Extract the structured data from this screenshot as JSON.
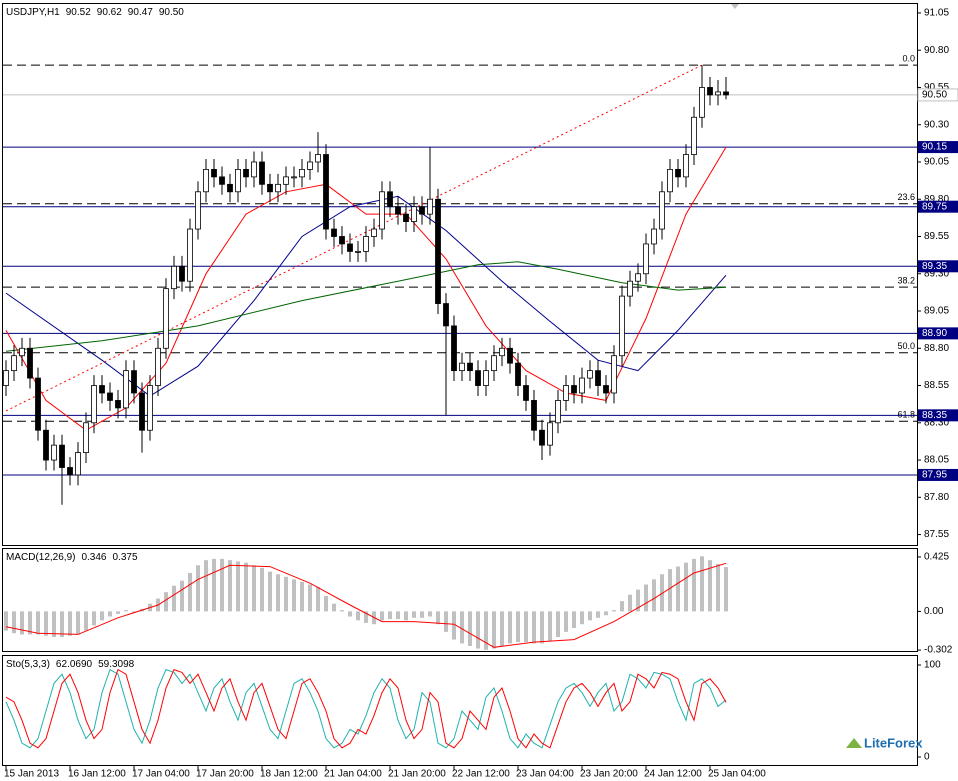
{
  "chart_data": [
    {
      "type": "candlestick",
      "title": "USDJPY,H1",
      "ohlc_header": [
        90.52,
        90.62,
        90.47,
        {
          "value": 90.5,
          "label": "90.50"
        }
      ],
      "categories": [
        "15 Jan 2013",
        null,
        null,
        null,
        null,
        null,
        null,
        null,
        "16 Jan 12:00",
        null,
        null,
        null,
        null,
        null,
        null,
        null,
        "17 Jan 04:00",
        null,
        null,
        null,
        null,
        null,
        null,
        null,
        "17 Jan 20:00",
        null,
        null,
        null,
        null,
        null,
        null,
        null,
        "18 Jan 12:00",
        null,
        null,
        null,
        null,
        null,
        null,
        null,
        "21 Jan 04:00",
        null,
        null,
        null,
        null,
        null,
        null,
        null,
        "21 Jan 20:00",
        null,
        null,
        null,
        null,
        null,
        null,
        null,
        "22 Jan 12:00",
        null,
        null,
        null,
        null,
        null,
        null,
        null,
        "23 Jan 04:00",
        null,
        null,
        null,
        null,
        null,
        null,
        null,
        "23 Jan 20:00",
        null,
        null,
        null,
        null,
        null,
        null,
        null,
        "24 Jan 12:00",
        null,
        null,
        null,
        null,
        null,
        null,
        null,
        "25 Jan 04:00",
        null,
        null
      ],
      "open": [
        88.55,
        88.65,
        88.75,
        88.8,
        88.6,
        88.25,
        88.05,
        88.15,
        88.0,
        87.95,
        88.1,
        88.3,
        88.55,
        88.5,
        88.45,
        88.4,
        88.65,
        88.5,
        88.25,
        88.55,
        88.8,
        89.2,
        89.35,
        89.25,
        89.6,
        89.85,
        90.0,
        89.95,
        89.9,
        89.85,
        90.0,
        89.95,
        90.05,
        89.9,
        89.85,
        89.9,
        89.95,
        89.95,
        90.0,
        90.05,
        90.1,
        89.6,
        89.55,
        89.5,
        89.45,
        89.45,
        89.55,
        89.6,
        89.85,
        89.75,
        89.7,
        89.65,
        89.75,
        89.7,
        89.8,
        89.1,
        88.95,
        88.65,
        88.7,
        88.65,
        88.55,
        88.65,
        88.75,
        88.8,
        88.7,
        88.55,
        88.45,
        88.25,
        88.15,
        88.3,
        88.45,
        88.55,
        88.5,
        88.6,
        88.65,
        88.55,
        88.5,
        88.75,
        89.15,
        89.25,
        89.3,
        89.5,
        89.6,
        89.85,
        90.0,
        89.95,
        90.1,
        90.35,
        90.55,
        90.5,
        90.52
      ],
      "high": [
        88.72,
        88.82,
        88.87,
        88.87,
        88.67,
        88.32,
        88.22,
        88.22,
        88.07,
        88.17,
        88.37,
        88.62,
        88.62,
        88.57,
        88.52,
        88.72,
        88.72,
        88.57,
        88.62,
        88.87,
        89.27,
        89.42,
        89.42,
        89.67,
        89.92,
        90.07,
        90.07,
        90.02,
        89.97,
        90.07,
        90.07,
        90.12,
        90.12,
        89.97,
        89.97,
        90.02,
        90.02,
        90.07,
        90.12,
        90.25,
        90.17,
        89.67,
        89.62,
        89.57,
        89.52,
        89.62,
        89.67,
        89.92,
        89.92,
        89.82,
        89.77,
        89.82,
        89.82,
        90.15,
        89.87,
        89.17,
        89.02,
        88.77,
        88.77,
        88.72,
        88.72,
        88.82,
        88.87,
        88.87,
        88.77,
        88.62,
        88.52,
        88.32,
        88.37,
        88.52,
        88.62,
        88.62,
        88.67,
        88.72,
        88.72,
        88.62,
        88.82,
        89.22,
        89.32,
        89.37,
        89.57,
        89.67,
        89.92,
        90.07,
        90.07,
        90.17,
        90.42,
        90.7,
        90.62,
        90.6,
        90.62
      ],
      "low": [
        88.48,
        88.58,
        88.68,
        88.53,
        88.18,
        87.98,
        87.98,
        87.75,
        87.88,
        87.88,
        88.03,
        88.23,
        88.43,
        88.38,
        88.33,
        88.33,
        88.43,
        88.1,
        88.18,
        88.48,
        88.73,
        89.13,
        89.18,
        89.18,
        89.53,
        89.78,
        89.88,
        89.83,
        89.78,
        89.78,
        89.88,
        89.88,
        89.83,
        89.78,
        89.78,
        89.83,
        89.88,
        89.88,
        89.93,
        89.98,
        89.53,
        89.48,
        89.43,
        89.38,
        89.38,
        89.38,
        89.48,
        89.53,
        89.68,
        89.63,
        89.58,
        89.58,
        89.63,
        89.63,
        89.03,
        88.35,
        88.58,
        88.58,
        88.58,
        88.48,
        88.48,
        88.58,
        88.68,
        88.63,
        88.48,
        88.38,
        88.18,
        88.05,
        88.08,
        88.23,
        88.38,
        88.43,
        88.43,
        88.53,
        88.48,
        88.43,
        88.43,
        88.68,
        89.08,
        89.18,
        89.23,
        89.43,
        89.53,
        89.78,
        89.88,
        89.88,
        90.03,
        90.28,
        90.43,
        90.43,
        90.47
      ],
      "close": [
        88.65,
        88.75,
        88.8,
        88.6,
        88.25,
        88.05,
        88.15,
        88.0,
        87.95,
        88.1,
        88.3,
        88.55,
        88.5,
        88.45,
        88.4,
        88.65,
        88.5,
        88.25,
        88.55,
        88.8,
        89.2,
        89.35,
        89.25,
        89.6,
        89.85,
        90.0,
        89.95,
        89.9,
        89.85,
        90.0,
        89.95,
        90.05,
        89.9,
        89.85,
        89.9,
        89.95,
        89.95,
        90.0,
        90.05,
        90.1,
        89.6,
        89.55,
        89.5,
        89.45,
        89.45,
        89.55,
        89.6,
        89.85,
        89.75,
        89.7,
        89.65,
        89.75,
        89.7,
        89.8,
        89.1,
        88.95,
        88.65,
        88.7,
        88.65,
        88.55,
        88.65,
        88.75,
        88.8,
        88.7,
        88.55,
        88.45,
        88.25,
        88.15,
        88.3,
        88.45,
        88.55,
        88.5,
        88.6,
        88.65,
        88.55,
        88.5,
        88.75,
        89.15,
        89.25,
        89.3,
        89.5,
        89.6,
        89.85,
        90.0,
        89.95,
        90.1,
        90.35,
        90.55,
        90.5,
        90.52,
        90.5
      ],
      "up_color": "#ffffff",
      "down_color": "#000000",
      "ylim": [
        87.48,
        91.11
      ],
      "yticks": [
        91.05,
        {
          "value": 90.8,
          "label": "90.80"
        },
        90.55,
        {
          "value": 90.3,
          "label": "90.30"
        },
        90.05,
        {
          "value": 89.8,
          "label": "89.80"
        },
        89.55,
        {
          "value": 89.3,
          "label": "89.30"
        },
        89.05,
        {
          "value": 88.8,
          "label": "88.80"
        },
        88.55,
        {
          "value": 88.3,
          "label": "88.30"
        },
        88.05,
        {
          "value": 87.8,
          "label": "87.80"
        },
        87.55
      ],
      "levels": [
        90.15,
        89.75,
        89.35,
        {
          "value": 88.9,
          "label": "88.90"
        },
        88.35,
        87.95
      ],
      "level_color": "#000080",
      "current_price": {
        "value": 90.5,
        "label": "90.50"
      },
      "fib_labels": [
        {
          "value": 0,
          "label": "0.0"
        },
        23.6,
        38.2,
        {
          "value": 50,
          "label": "50.0"
        },
        61.8
      ],
      "fib_prices": [
        90.7,
        89.77,
        89.21,
        88.77,
        88.31
      ],
      "trendline": {
        "x": [
          0,
          87
        ],
        "values": [
          88.38,
          90.7
        ],
        "color": "#ff0000"
      },
      "series": [
        {
          "color": "#ff0000",
          "x": [
            0,
            5,
            10,
            15,
            20,
            25,
            30,
            35,
            40,
            45,
            50,
            55,
            60,
            65,
            70,
            75,
            80,
            85,
            90
          ],
          "values": [
            88.92,
            88.45,
            88.25,
            88.4,
            88.7,
            89.3,
            89.7,
            89.85,
            89.9,
            89.7,
            89.7,
            89.4,
            88.95,
            88.65,
            88.5,
            88.45,
            89.0,
            89.7,
            90.15
          ]
        },
        {
          "color": "#00008b",
          "x": [
            0,
            12,
            18,
            24,
            31,
            37,
            43,
            49,
            55,
            62,
            68,
            74,
            79,
            84,
            90
          ],
          "values": [
            89.17,
            88.72,
            88.48,
            88.68,
            89.12,
            89.55,
            89.75,
            89.82,
            89.59,
            89.25,
            88.98,
            88.72,
            88.65,
            88.92,
            89.29
          ]
        },
        {
          "color": "#006400",
          "x": [
            0,
            12,
            24,
            37,
            49,
            59,
            64,
            69,
            77,
            84,
            90
          ],
          "values": [
            88.78,
            88.85,
            88.95,
            89.12,
            89.25,
            89.36,
            89.38,
            89.33,
            89.24,
            89.19,
            89.21
          ]
        }
      ]
    },
    {
      "type": "macd",
      "title": "MACD(12,26,9)",
      "header_values": [
        0.346,
        0.375
      ],
      "histogram": {
        "color": "#c0c0c0",
        "values": [
          -0.15,
          -0.17,
          -0.18,
          -0.18,
          -0.18,
          -0.19,
          -0.2,
          -0.2,
          -0.19,
          -0.18,
          -0.15,
          -0.11,
          -0.07,
          -0.04,
          -0.02,
          0.01,
          -0.01,
          0.02,
          0.06,
          0.1,
          0.15,
          0.2,
          0.24,
          0.3,
          0.36,
          0.4,
          0.41,
          0.41,
          0.4,
          0.39,
          0.38,
          0.36,
          0.34,
          0.31,
          0.29,
          0.27,
          0.25,
          0.23,
          0.21,
          0.19,
          0.12,
          0.06,
          0.01,
          -0.04,
          -0.07,
          -0.09,
          -0.1,
          -0.07,
          -0.06,
          -0.06,
          -0.07,
          -0.05,
          -0.05,
          -0.04,
          -0.1,
          -0.16,
          -0.22,
          -0.25,
          -0.27,
          -0.29,
          -0.3,
          -0.29,
          -0.27,
          -0.25,
          -0.24,
          -0.24,
          -0.25,
          -0.25,
          -0.23,
          -0.2,
          -0.16,
          -0.13,
          -0.1,
          -0.07,
          -0.05,
          -0.03,
          0.01,
          0.08,
          0.13,
          0.17,
          0.21,
          0.25,
          0.29,
          0.33,
          0.35,
          0.38,
          0.41,
          0.43,
          0.4,
          0.37,
          0.346
        ]
      },
      "signal": {
        "color": "#ff0000",
        "x": [
          0,
          4,
          9,
          14,
          19,
          24,
          28,
          33,
          38,
          43,
          47,
          51,
          56,
          61,
          66,
          71,
          76,
          81,
          86,
          90
        ],
        "values": [
          -0.12,
          -0.17,
          -0.18,
          -0.05,
          0.05,
          0.25,
          0.36,
          0.35,
          0.22,
          0.05,
          -0.08,
          -0.08,
          -0.1,
          -0.28,
          -0.24,
          -0.22,
          -0.08,
          0.1,
          0.3,
          0.375
        ]
      },
      "ylim": [
        -0.317,
        0.487
      ],
      "yticks": [
        0.425,
        {
          "value": 0,
          "label": "0.00"
        },
        -0.302
      ]
    },
    {
      "type": "stochastic",
      "title": "Sto(5,3,3)",
      "header_values": [
        {
          "value": 62.069,
          "label": "62.0690"
        },
        59.3098
      ],
      "series": [
        {
          "color": "#20b2aa",
          "values": [
            60,
            40,
            15,
            10,
            20,
            50,
            80,
            90,
            70,
            40,
            20,
            30,
            70,
            95,
            90,
            60,
            30,
            15,
            40,
            75,
            95,
            92,
            80,
            90,
            70,
            50,
            75,
            85,
            60,
            40,
            70,
            80,
            55,
            30,
            20,
            50,
            80,
            85,
            70,
            50,
            20,
            10,
            15,
            30,
            25,
            45,
            70,
            85,
            75,
            40,
            20,
            30,
            70,
            60,
            15,
            10,
            20,
            50,
            40,
            30,
            65,
            75,
            50,
            20,
            10,
            25,
            15,
            10,
            35,
            60,
            75,
            80,
            70,
            55,
            70,
            80,
            50,
            60,
            90,
            85,
            75,
            92,
            90,
            85,
            60,
            40,
            80,
            85,
            75,
            55,
            62.069
          ]
        },
        {
          "color": "#ff0000",
          "values": [
            65,
            60,
            40,
            15,
            10,
            20,
            50,
            80,
            90,
            70,
            40,
            20,
            30,
            70,
            95,
            90,
            60,
            30,
            15,
            40,
            75,
            95,
            92,
            80,
            90,
            70,
            50,
            75,
            85,
            60,
            40,
            70,
            80,
            55,
            30,
            20,
            50,
            80,
            85,
            70,
            50,
            20,
            10,
            15,
            30,
            25,
            45,
            70,
            85,
            75,
            40,
            20,
            30,
            70,
            60,
            15,
            10,
            20,
            50,
            40,
            30,
            65,
            75,
            50,
            20,
            10,
            25,
            15,
            10,
            35,
            60,
            75,
            80,
            70,
            55,
            70,
            80,
            50,
            60,
            90,
            85,
            75,
            92,
            90,
            85,
            60,
            40,
            80,
            85,
            75,
            59.3098
          ]
        }
      ],
      "ylim": [
        -8.7,
        109.8
      ],
      "yticks": [
        0,
        100
      ]
    }
  ],
  "logo": "LiteForex"
}
